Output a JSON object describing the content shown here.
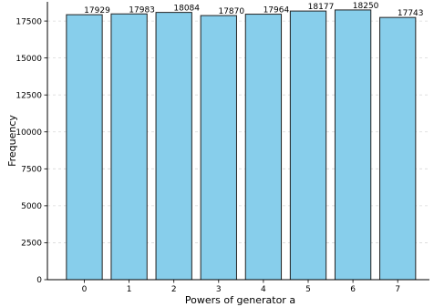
{
  "chart_data": {
    "type": "bar",
    "categories": [
      "0",
      "1",
      "2",
      "3",
      "4",
      "5",
      "6",
      "7"
    ],
    "values": [
      17929,
      17983,
      18084,
      17870,
      17964,
      18177,
      18250,
      17743
    ],
    "data_labels": [
      "17929",
      "17983",
      "18084",
      "17870",
      "17964",
      "18177",
      "18250",
      "17743"
    ],
    "title": "",
    "xlabel": "Powers of generator a",
    "ylabel": "Frequency",
    "ylim": [
      0,
      18800
    ],
    "yticks": [
      0,
      2500,
      5000,
      7500,
      10000,
      12500,
      15000,
      17500
    ],
    "ytick_labels": [
      "0",
      "2500",
      "5000",
      "7500",
      "10000",
      "12500",
      "15000",
      "17500"
    ],
    "grid": "y-dashed",
    "legend": "none",
    "colors": {
      "bar_fill": "#87ceeb",
      "bar_edge": "#222222",
      "grid": "#d9d9d9",
      "axis": "#000000"
    }
  }
}
